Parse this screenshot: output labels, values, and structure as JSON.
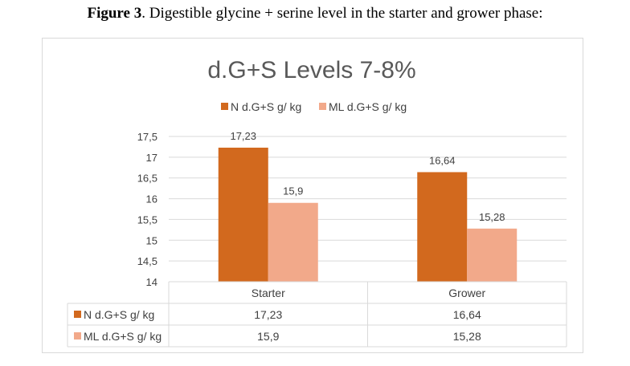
{
  "caption": {
    "prefix": "Figure 3",
    "text": ". Digestible glycine + serine level in the starter and grower phase:"
  },
  "colors": {
    "series_n": "#d2691e",
    "series_ml": "#f2a98a",
    "grid": "#d9d9d9",
    "text": "#404040",
    "title": "#595959"
  },
  "chart_data": {
    "type": "bar",
    "title": "d.G+S Levels 7-8%",
    "categories": [
      "Starter",
      "Grower"
    ],
    "series": [
      {
        "name": "N d.G+S g/ kg",
        "values": [
          17.23,
          16.64
        ],
        "labels": [
          "17,23",
          "16,64"
        ]
      },
      {
        "name": "ML d.G+S g/ kg",
        "values": [
          15.9,
          15.28
        ],
        "labels": [
          "15,9",
          "15,28"
        ]
      }
    ],
    "ylim": [
      14,
      17.5
    ],
    "yticks": [
      14,
      14.5,
      15,
      15.5,
      16,
      16.5,
      17,
      17.5
    ],
    "ytick_labels": [
      "14",
      "14,5",
      "15",
      "15,5",
      "16",
      "16,5",
      "17",
      "17,5"
    ],
    "grid": true,
    "legend": "top",
    "data_table": true
  }
}
